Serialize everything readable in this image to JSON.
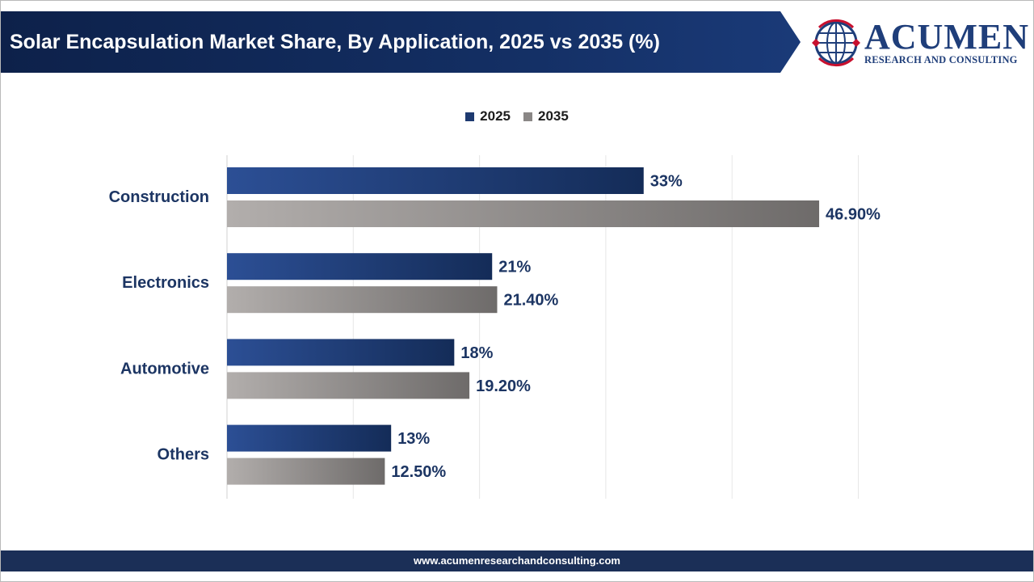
{
  "header": {
    "title": "Solar Encapsulation Market Share, By Application, 2025 vs 2035 (%)"
  },
  "logo": {
    "name": "ACUMEN",
    "subtitle": "RESEARCH AND CONSULTING"
  },
  "colors": {
    "banner": "#0f2550",
    "series_2025": "#1e3a70",
    "series_2035": "#7a7776",
    "label": "#1c3563"
  },
  "chart_data": {
    "type": "bar",
    "orientation": "horizontal",
    "categories": [
      "Construction",
      "Electronics",
      "Automotive",
      "Others"
    ],
    "series": [
      {
        "name": "2025",
        "values": [
          33,
          21,
          18,
          13
        ],
        "labels": [
          "33%",
          "21%",
          "18%",
          "13%"
        ]
      },
      {
        "name": "2035",
        "values": [
          46.9,
          21.4,
          19.2,
          12.5
        ],
        "labels": [
          "46.90%",
          "21.40%",
          "19.20%",
          "12.50%"
        ]
      }
    ],
    "xlim": [
      0,
      50
    ],
    "grid": true,
    "legend": "top-center"
  },
  "footer": {
    "url": "www.acumenresearchandconsulting.com"
  }
}
